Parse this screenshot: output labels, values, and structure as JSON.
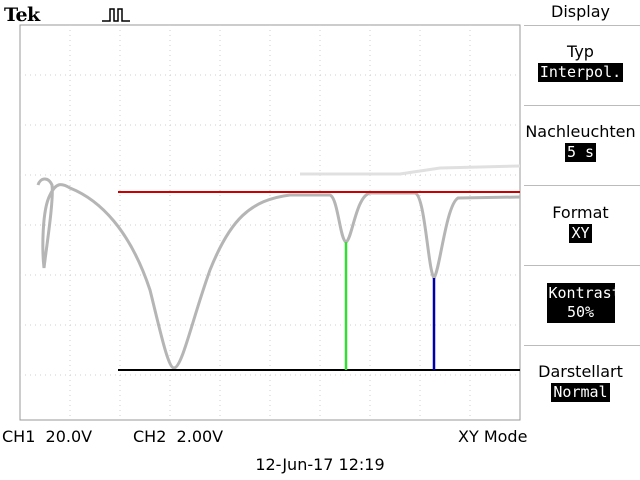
{
  "brand": "Tek",
  "trigger_icon": "pulse-trigger-icon",
  "menu": {
    "title": "Display",
    "items": [
      {
        "label": "Typ",
        "value": "Interpol."
      },
      {
        "label": "Nachleuchten",
        "value": "5 s"
      },
      {
        "label": "Format",
        "value": "XY"
      },
      {
        "label": "Kontrast",
        "value": "50%"
      },
      {
        "label": "Darstellart",
        "value": "Normal"
      }
    ]
  },
  "status": {
    "ch1": "CH1  20.0V",
    "ch2": "CH2  2.00V",
    "mode": "XY Mode"
  },
  "timestamp": "12-Jun-17 12:19",
  "colors": {
    "trace": "#b5b5b5",
    "red_cursor": "#cc0000",
    "green_marker": "#33dd33",
    "blue_marker": "#0000aa",
    "baseline": "#000000"
  }
}
